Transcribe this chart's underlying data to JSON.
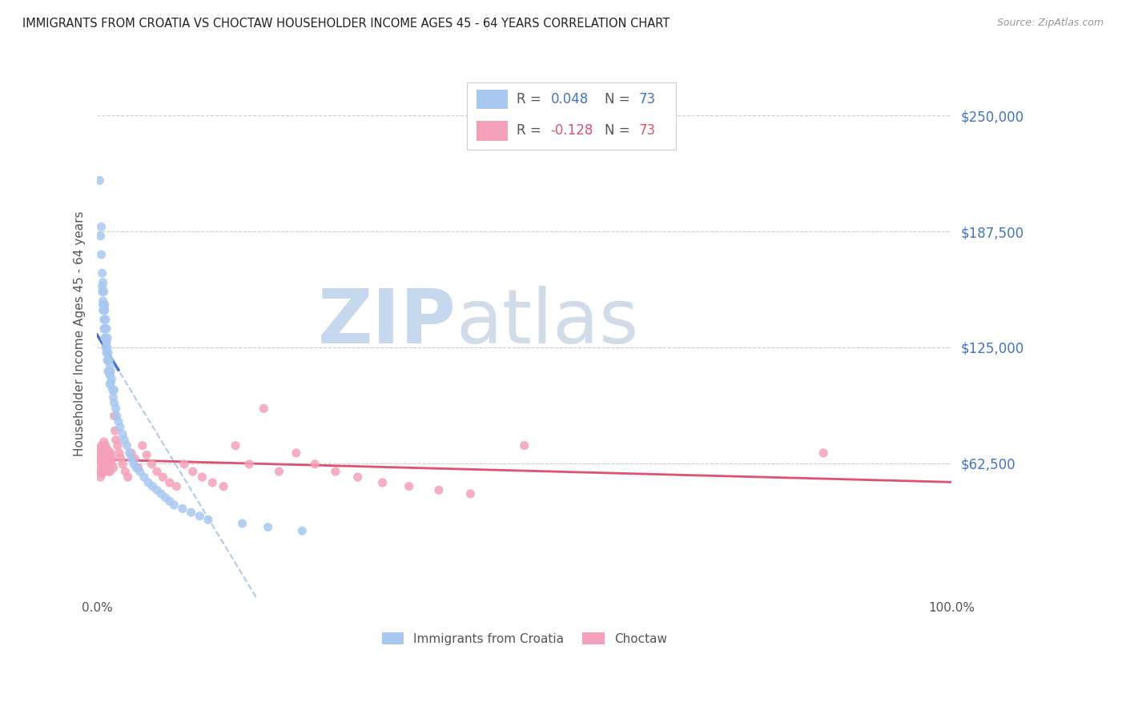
{
  "title": "IMMIGRANTS FROM CROATIA VS CHOCTAW HOUSEHOLDER INCOME AGES 45 - 64 YEARS CORRELATION CHART",
  "source": "Source: ZipAtlas.com",
  "ylabel": "Householder Income Ages 45 - 64 years",
  "ytick_labels": [
    "$62,500",
    "$125,000",
    "$187,500",
    "$250,000"
  ],
  "ytick_values": [
    62500,
    125000,
    187500,
    250000
  ],
  "ymin": -10000,
  "ymax": 275000,
  "xmin": 0.0,
  "xmax": 1.0,
  "R_croatia": 0.048,
  "N_croatia": 73,
  "R_choctaw": -0.128,
  "N_choctaw": 73,
  "color_croatia": "#a8c8f0",
  "color_choctaw": "#f4a0b8",
  "color_croatia_line": "#4472c4",
  "color_choctaw_line": "#e05070",
  "color_croatia_dash": "#aac4e8",
  "color_title": "#222222",
  "color_source": "#999999",
  "color_ytick": "#4472c4",
  "color_legend_R1": "#4472c4",
  "color_legend_N1": "#4472c4",
  "color_legend_R2": "#e05070",
  "color_legend_N2": "#e05070",
  "watermark_ZIP_color": "#c5d8ee",
  "watermark_atlas_color": "#c5d8ee",
  "background_color": "#ffffff",
  "grid_color": "#cccccc",
  "croatia_x": [
    0.003,
    0.004,
    0.005,
    0.005,
    0.006,
    0.006,
    0.006,
    0.007,
    0.007,
    0.007,
    0.007,
    0.008,
    0.008,
    0.008,
    0.008,
    0.008,
    0.009,
    0.009,
    0.009,
    0.009,
    0.009,
    0.01,
    0.01,
    0.01,
    0.01,
    0.011,
    0.011,
    0.011,
    0.012,
    0.012,
    0.012,
    0.013,
    0.013,
    0.013,
    0.014,
    0.014,
    0.015,
    0.015,
    0.015,
    0.016,
    0.016,
    0.017,
    0.018,
    0.019,
    0.02,
    0.02,
    0.022,
    0.023,
    0.025,
    0.027,
    0.03,
    0.032,
    0.035,
    0.038,
    0.04,
    0.043,
    0.046,
    0.05,
    0.055,
    0.06,
    0.065,
    0.07,
    0.075,
    0.08,
    0.085,
    0.09,
    0.1,
    0.11,
    0.12,
    0.13,
    0.17,
    0.2,
    0.24
  ],
  "croatia_y": [
    215000,
    185000,
    190000,
    175000,
    165000,
    158000,
    155000,
    160000,
    150000,
    148000,
    145000,
    155000,
    148000,
    145000,
    140000,
    135000,
    148000,
    145000,
    140000,
    135000,
    130000,
    140000,
    135000,
    130000,
    125000,
    135000,
    128000,
    122000,
    130000,
    125000,
    118000,
    122000,
    118000,
    112000,
    118000,
    112000,
    115000,
    110000,
    105000,
    112000,
    106000,
    108000,
    102000,
    98000,
    102000,
    95000,
    92000,
    88000,
    85000,
    82000,
    78000,
    75000,
    72000,
    68000,
    65000,
    62000,
    60000,
    58000,
    55000,
    52000,
    50000,
    48000,
    46000,
    44000,
    42000,
    40000,
    38000,
    36000,
    34000,
    32000,
    30000,
    28000,
    26000
  ],
  "choctaw_x": [
    0.002,
    0.003,
    0.003,
    0.004,
    0.004,
    0.004,
    0.005,
    0.005,
    0.005,
    0.006,
    0.006,
    0.006,
    0.007,
    0.007,
    0.007,
    0.008,
    0.008,
    0.008,
    0.009,
    0.009,
    0.01,
    0.01,
    0.011,
    0.011,
    0.012,
    0.012,
    0.013,
    0.013,
    0.014,
    0.015,
    0.015,
    0.016,
    0.017,
    0.018,
    0.019,
    0.02,
    0.021,
    0.022,
    0.024,
    0.026,
    0.028,
    0.03,
    0.033,
    0.036,
    0.04,
    0.044,
    0.048,
    0.053,
    0.058,
    0.064,
    0.07,
    0.077,
    0.085,
    0.093,
    0.102,
    0.112,
    0.123,
    0.135,
    0.148,
    0.162,
    0.178,
    0.195,
    0.213,
    0.233,
    0.255,
    0.279,
    0.305,
    0.334,
    0.365,
    0.4,
    0.437,
    0.5,
    0.85
  ],
  "choctaw_y": [
    70000,
    65000,
    58000,
    68000,
    62000,
    55000,
    72000,
    65000,
    58000,
    70000,
    63000,
    57000,
    72000,
    65000,
    58000,
    74000,
    67000,
    60000,
    70000,
    63000,
    72000,
    65000,
    68000,
    61000,
    70000,
    63000,
    65000,
    58000,
    68000,
    65000,
    58000,
    68000,
    62000,
    65000,
    60000,
    88000,
    80000,
    75000,
    72000,
    68000,
    65000,
    62000,
    58000,
    55000,
    68000,
    65000,
    60000,
    72000,
    67000,
    62000,
    58000,
    55000,
    52000,
    50000,
    62000,
    58000,
    55000,
    52000,
    50000,
    72000,
    62000,
    92000,
    58000,
    68000,
    62000,
    58000,
    55000,
    52000,
    50000,
    48000,
    46000,
    72000,
    68000
  ]
}
